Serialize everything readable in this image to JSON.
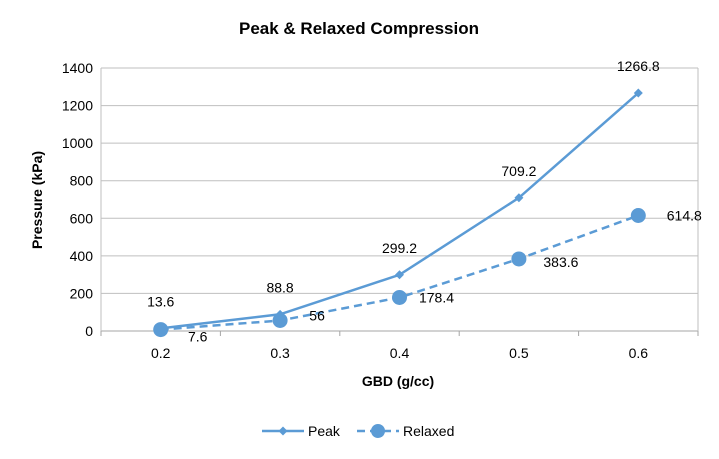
{
  "chart_data": {
    "type": "line",
    "title": "Peak & Relaxed Compression",
    "xlabel": "GBD (g/cc)",
    "ylabel": "Pressure (kPa)",
    "categories": [
      "0.2",
      "0.3",
      "0.4",
      "0.5",
      "0.6"
    ],
    "ylim": [
      0,
      1400
    ],
    "yticks": [
      0,
      200,
      400,
      600,
      800,
      1000,
      1200,
      1400
    ],
    "grid": "horizontal",
    "legend": "bottom",
    "series": [
      {
        "name": "Peak",
        "values": [
          13.6,
          88.8,
          299.2,
          709.2,
          1266.8
        ],
        "labels": [
          "13.6",
          "88.8",
          "299.2",
          "709.2",
          "1266.8"
        ],
        "color": "#5b9bd5",
        "line_style": "solid",
        "marker": "diamond"
      },
      {
        "name": "Relaxed",
        "values": [
          7.6,
          56,
          178.4,
          383.6,
          614.8
        ],
        "labels": [
          "7.6",
          "56",
          "178.4",
          "383.6",
          "614.8"
        ],
        "color": "#5b9bd5",
        "line_style": "dashed",
        "marker": "circle"
      }
    ]
  }
}
